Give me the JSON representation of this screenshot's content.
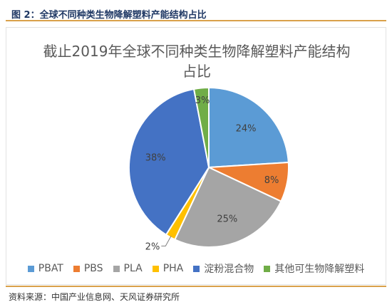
{
  "figure": {
    "caption": "图 2：全球不同种类生物降解塑料产能结构占比",
    "source": "资料来源：中国产业信息网、天风证券研究所"
  },
  "chart_data": {
    "type": "pie",
    "title_line1": "截止2019年全球不同种类生物降解塑料产能结构",
    "title_line2": "占比",
    "categories": [
      "PBAT",
      "PBS",
      "PLA",
      "PHA",
      "淀粉混合物",
      "其他可生物降解塑料"
    ],
    "values": [
      24,
      8,
      25,
      2,
      38,
      3
    ],
    "labels": [
      "24%",
      "8%",
      "25%",
      "2%",
      "38%",
      "3%"
    ],
    "colors": [
      "#5b9bd5",
      "#ed7d31",
      "#a5a5a5",
      "#ffc000",
      "#4472c4",
      "#70ad47"
    ],
    "legend_position": "bottom"
  }
}
